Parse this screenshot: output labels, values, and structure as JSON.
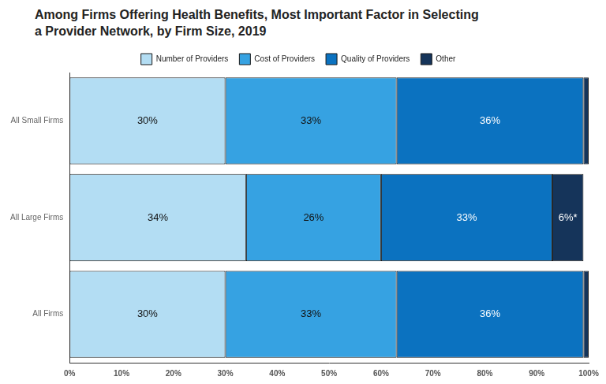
{
  "chart_data": {
    "type": "bar",
    "title": "Among Firms Offering Health Benefits, Most Important Factor in Selecting a Provider Network, by Firm Size, 2019",
    "orientation": "horizontal",
    "stacked": true,
    "data_labels": true,
    "legend": "top",
    "grid": false,
    "categories": [
      "All Small Firms",
      "All Large Firms",
      "All Firms"
    ],
    "series": [
      {
        "name": "Number of Providers",
        "color": "#b3ddf3",
        "values": [
          30,
          34,
          30
        ],
        "value_labels": [
          "30%",
          "34%",
          "30%"
        ]
      },
      {
        "name": "Cost of Providers",
        "color": "#36a2e2",
        "values": [
          33,
          26,
          33
        ],
        "value_labels": [
          "33%",
          "26%",
          "33%"
        ]
      },
      {
        "name": "Quality of Providers",
        "color": "#0b72c0",
        "values": [
          36,
          33,
          36
        ],
        "value_labels": [
          "36%",
          "33%",
          "36%"
        ]
      },
      {
        "name": "Other",
        "color": "#15345a",
        "values": [
          1,
          6,
          1
        ],
        "value_labels": [
          null,
          "6%*",
          null
        ]
      }
    ],
    "xlim": [
      0,
      100
    ],
    "xticks": [
      {
        "value": 0,
        "label": "0%"
      },
      {
        "value": 10,
        "label": "10%"
      },
      {
        "value": 20,
        "label": "20%"
      },
      {
        "value": 30,
        "label": "30%"
      },
      {
        "value": 40,
        "label": "40%"
      },
      {
        "value": 50,
        "label": "50%"
      },
      {
        "value": 60,
        "label": "60%"
      },
      {
        "value": 70,
        "label": "70%"
      },
      {
        "value": 80,
        "label": "80%"
      },
      {
        "value": 90,
        "label": "90%"
      },
      {
        "value": 100,
        "label": "100%"
      }
    ]
  }
}
